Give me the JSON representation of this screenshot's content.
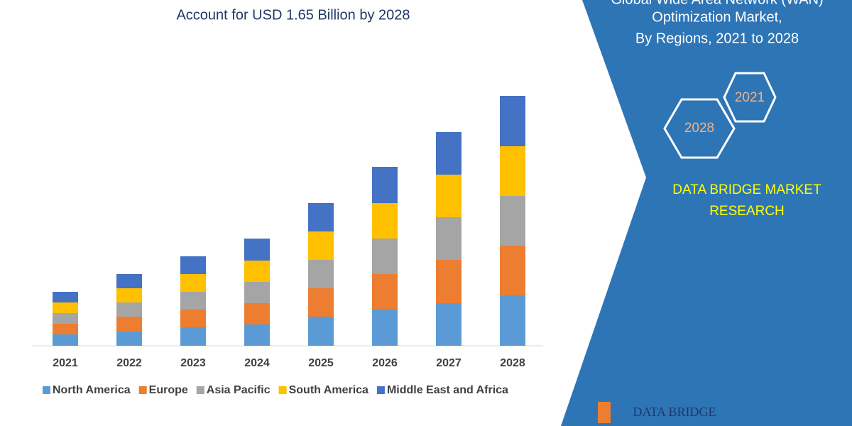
{
  "chart_data": {
    "type": "stacked_bar",
    "title": "Account for USD 1.65 Billion by 2028",
    "categories": [
      "2021",
      "2022",
      "2023",
      "2024",
      "2025",
      "2026",
      "2027",
      "2028"
    ],
    "series": [
      {
        "name": "North America",
        "color": "#5b9bd5",
        "values": [
          16,
          20,
          26,
          30,
          41,
          51,
          60,
          71
        ]
      },
      {
        "name": "Europe",
        "color": "#ed7d31",
        "values": [
          15,
          21,
          25,
          30,
          40,
          50,
          61,
          70
        ]
      },
      {
        "name": "Asia Pacific",
        "color": "#a5a5a5",
        "values": [
          15,
          20,
          25,
          30,
          40,
          50,
          60,
          70
        ]
      },
      {
        "name": "South America",
        "color": "#ffc000",
        "values": [
          15,
          20,
          25,
          30,
          40,
          50,
          60,
          70
        ]
      },
      {
        "name": "Middle East and Africa",
        "color": "#4472c4",
        "values": [
          15,
          20,
          25,
          31,
          40,
          51,
          60,
          71
        ]
      }
    ],
    "legend": "bottom"
  },
  "side_panel": {
    "title_lines": [
      "Global Wide Area Network (WAN)",
      "Optimization Market,",
      "By Regions, 2021 to 2028"
    ],
    "hexagons": [
      "2021",
      "2028"
    ],
    "brand_lines": [
      "DATA BRIDGE MARKET",
      "RESEARCH"
    ],
    "logo": "DATA BRIDGE"
  }
}
